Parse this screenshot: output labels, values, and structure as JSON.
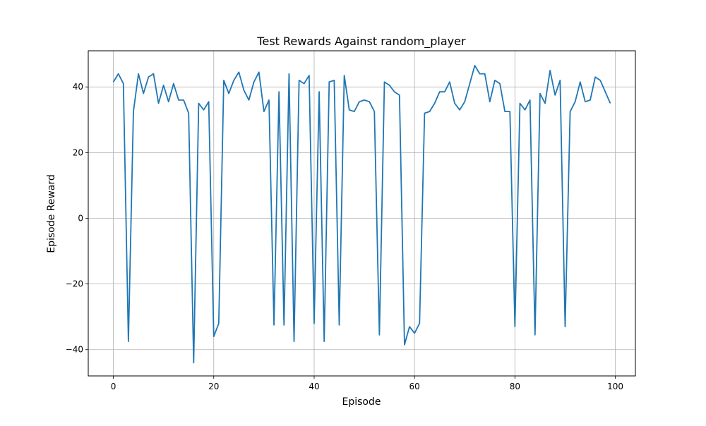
{
  "chart_data": {
    "type": "line",
    "title": "Test Rewards Against random_player",
    "xlabel": "Episode",
    "ylabel": "Episode Reward",
    "xlim": [
      -5,
      104
    ],
    "ylim": [
      -48,
      51
    ],
    "x_ticks": [
      0,
      20,
      40,
      60,
      80,
      100
    ],
    "y_ticks": [
      -40,
      -20,
      0,
      20,
      40
    ],
    "x_tick_labels": [
      "0",
      "20",
      "40",
      "60",
      "80",
      "100"
    ],
    "y_tick_labels": [
      "−40",
      "−20",
      "0",
      "20",
      "40"
    ],
    "grid": true,
    "line_color": "#1f77b4",
    "series": [
      {
        "x": [
          0,
          1,
          2,
          3,
          4,
          5,
          6,
          7,
          8,
          9,
          10,
          11,
          12,
          13,
          14,
          15,
          16,
          17,
          18,
          19,
          20,
          21,
          22,
          23,
          24,
          25,
          26,
          27,
          28,
          29,
          30,
          31,
          32,
          33,
          34,
          35,
          36,
          37,
          38,
          39,
          40,
          41,
          42,
          43,
          44,
          45,
          46,
          47,
          48,
          49,
          50,
          51,
          52,
          53,
          54,
          55,
          56,
          57,
          58,
          59,
          60,
          61,
          62,
          63,
          64,
          65,
          66,
          67,
          68,
          69,
          70,
          71,
          72,
          73,
          74,
          75,
          76,
          77,
          78,
          79,
          80,
          81,
          82,
          83,
          84,
          85,
          86,
          87,
          88,
          89,
          90,
          91,
          92,
          93,
          94,
          95,
          96,
          97,
          98,
          99
        ],
        "values": [
          41.5,
          44.0,
          41.0,
          -37.5,
          32.5,
          44.0,
          38.0,
          43.0,
          44.0,
          35.0,
          40.5,
          35.5,
          41.0,
          36.0,
          36.0,
          32.0,
          -44.0,
          35.0,
          33.0,
          35.5,
          -36.0,
          -32.0,
          42.0,
          38.0,
          42.0,
          44.5,
          39.0,
          36.0,
          41.5,
          44.5,
          32.5,
          36.0,
          -32.5,
          38.5,
          -32.5,
          44.0,
          -37.5,
          42.0,
          41.0,
          43.5,
          -32.0,
          38.5,
          -37.5,
          41.5,
          42.0,
          -32.5,
          43.5,
          33.0,
          32.5,
          35.5,
          36.0,
          35.5,
          32.5,
          -35.5,
          41.5,
          40.5,
          38.5,
          37.5,
          -38.5,
          -33.0,
          -35.0,
          -32.0,
          32.0,
          32.5,
          35.0,
          38.5,
          38.5,
          41.5,
          35.0,
          33.0,
          35.5,
          41.0,
          46.5,
          44.0,
          44.0,
          35.5,
          42.0,
          41.0,
          32.5,
          32.5,
          -33.0,
          35.0,
          33.0,
          36.0,
          -35.5,
          38.0,
          35.0,
          45.0,
          37.5,
          42.0,
          -33.0,
          32.5,
          35.5,
          41.5,
          35.5,
          36.0,
          43.0,
          42.0,
          38.5,
          35.0
        ]
      }
    ]
  }
}
